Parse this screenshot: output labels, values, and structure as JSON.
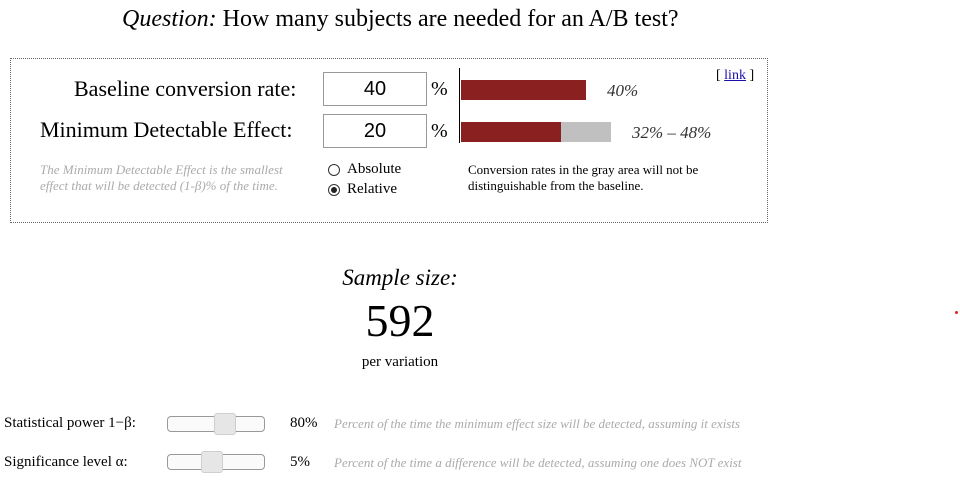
{
  "question": {
    "prefix": "Question:",
    "text": "How many subjects are needed for an A/B test?"
  },
  "panel": {
    "baseline": {
      "label": "Baseline conversion rate:",
      "value": "40",
      "unit": "%",
      "bar_label": "40%",
      "fraction": 0.4
    },
    "mde": {
      "label": "Minimum Detectable Effect:",
      "value": "20",
      "unit": "%",
      "bar_label": "32% – 48%",
      "range_low_fraction": 0.32,
      "range_high_fraction": 0.48
    },
    "link_open": "[",
    "link_text": "link",
    "link_close": "]",
    "mde_note": "The Minimum Detectable Effect is the smallest effect that will be detected (1-β)% of the time.",
    "radio": {
      "options": [
        "Absolute",
        "Relative"
      ],
      "selected": "Relative"
    },
    "gray_note": "Conversion rates in the gray area will not be distinguishable from the baseline."
  },
  "sample": {
    "label": "Sample size:",
    "value": "592",
    "unit": "per variation"
  },
  "power": {
    "label": "Statistical power 1−β:",
    "value": "80%",
    "fraction": 0.8,
    "desc": "Percent of the time the minimum effect size will be detected, assuming it exists"
  },
  "significance": {
    "label": "Significance level α:",
    "value": "5%",
    "fraction": 0.05,
    "desc": "Percent of the time a difference will be detected, assuming one does NOT exist"
  },
  "colors": {
    "bar": "#8b2020",
    "gray": "#c0c0c0",
    "note": "#aaaaaa",
    "link": "#1a0dab"
  }
}
